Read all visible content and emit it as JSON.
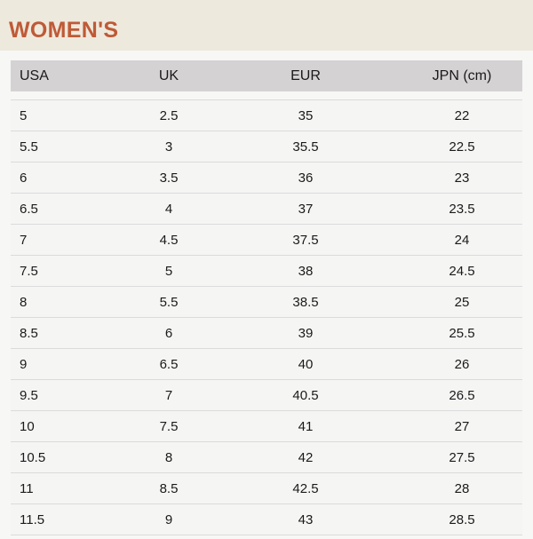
{
  "page": {
    "title": "WOMEN'S"
  },
  "theme": {
    "accent_title_color": "#bf5a36",
    "title_band_bg": "#eee9dd",
    "table_header_bg": "#d5d2d3",
    "row_bg": "#f5f5f4",
    "page_bg": "#f7f7f6",
    "row_border": "#dbdbdb",
    "text_color": "#1a1a1a"
  },
  "size_table": {
    "columns": [
      "USA",
      "UK",
      "EUR",
      "JPN (cm)"
    ],
    "column_keys": [
      "usa",
      "uk",
      "eur",
      "jpn-cm"
    ],
    "rows": [
      [
        "5",
        "2.5",
        "35",
        "22"
      ],
      [
        "5.5",
        "3",
        "35.5",
        "22.5"
      ],
      [
        "6",
        "3.5",
        "36",
        "23"
      ],
      [
        "6.5",
        "4",
        "37",
        "23.5"
      ],
      [
        "7",
        "4.5",
        "37.5",
        "24"
      ],
      [
        "7.5",
        "5",
        "38",
        "24.5"
      ],
      [
        "8",
        "5.5",
        "38.5",
        "25"
      ],
      [
        "8.5",
        "6",
        "39",
        "25.5"
      ],
      [
        "9",
        "6.5",
        "40",
        "26"
      ],
      [
        "9.5",
        "7",
        "40.5",
        "26.5"
      ],
      [
        "10",
        "7.5",
        "41",
        "27"
      ],
      [
        "10.5",
        "8",
        "42",
        "27.5"
      ],
      [
        "11",
        "8.5",
        "42.5",
        "28"
      ],
      [
        "11.5",
        "9",
        "43",
        "28.5"
      ]
    ]
  }
}
